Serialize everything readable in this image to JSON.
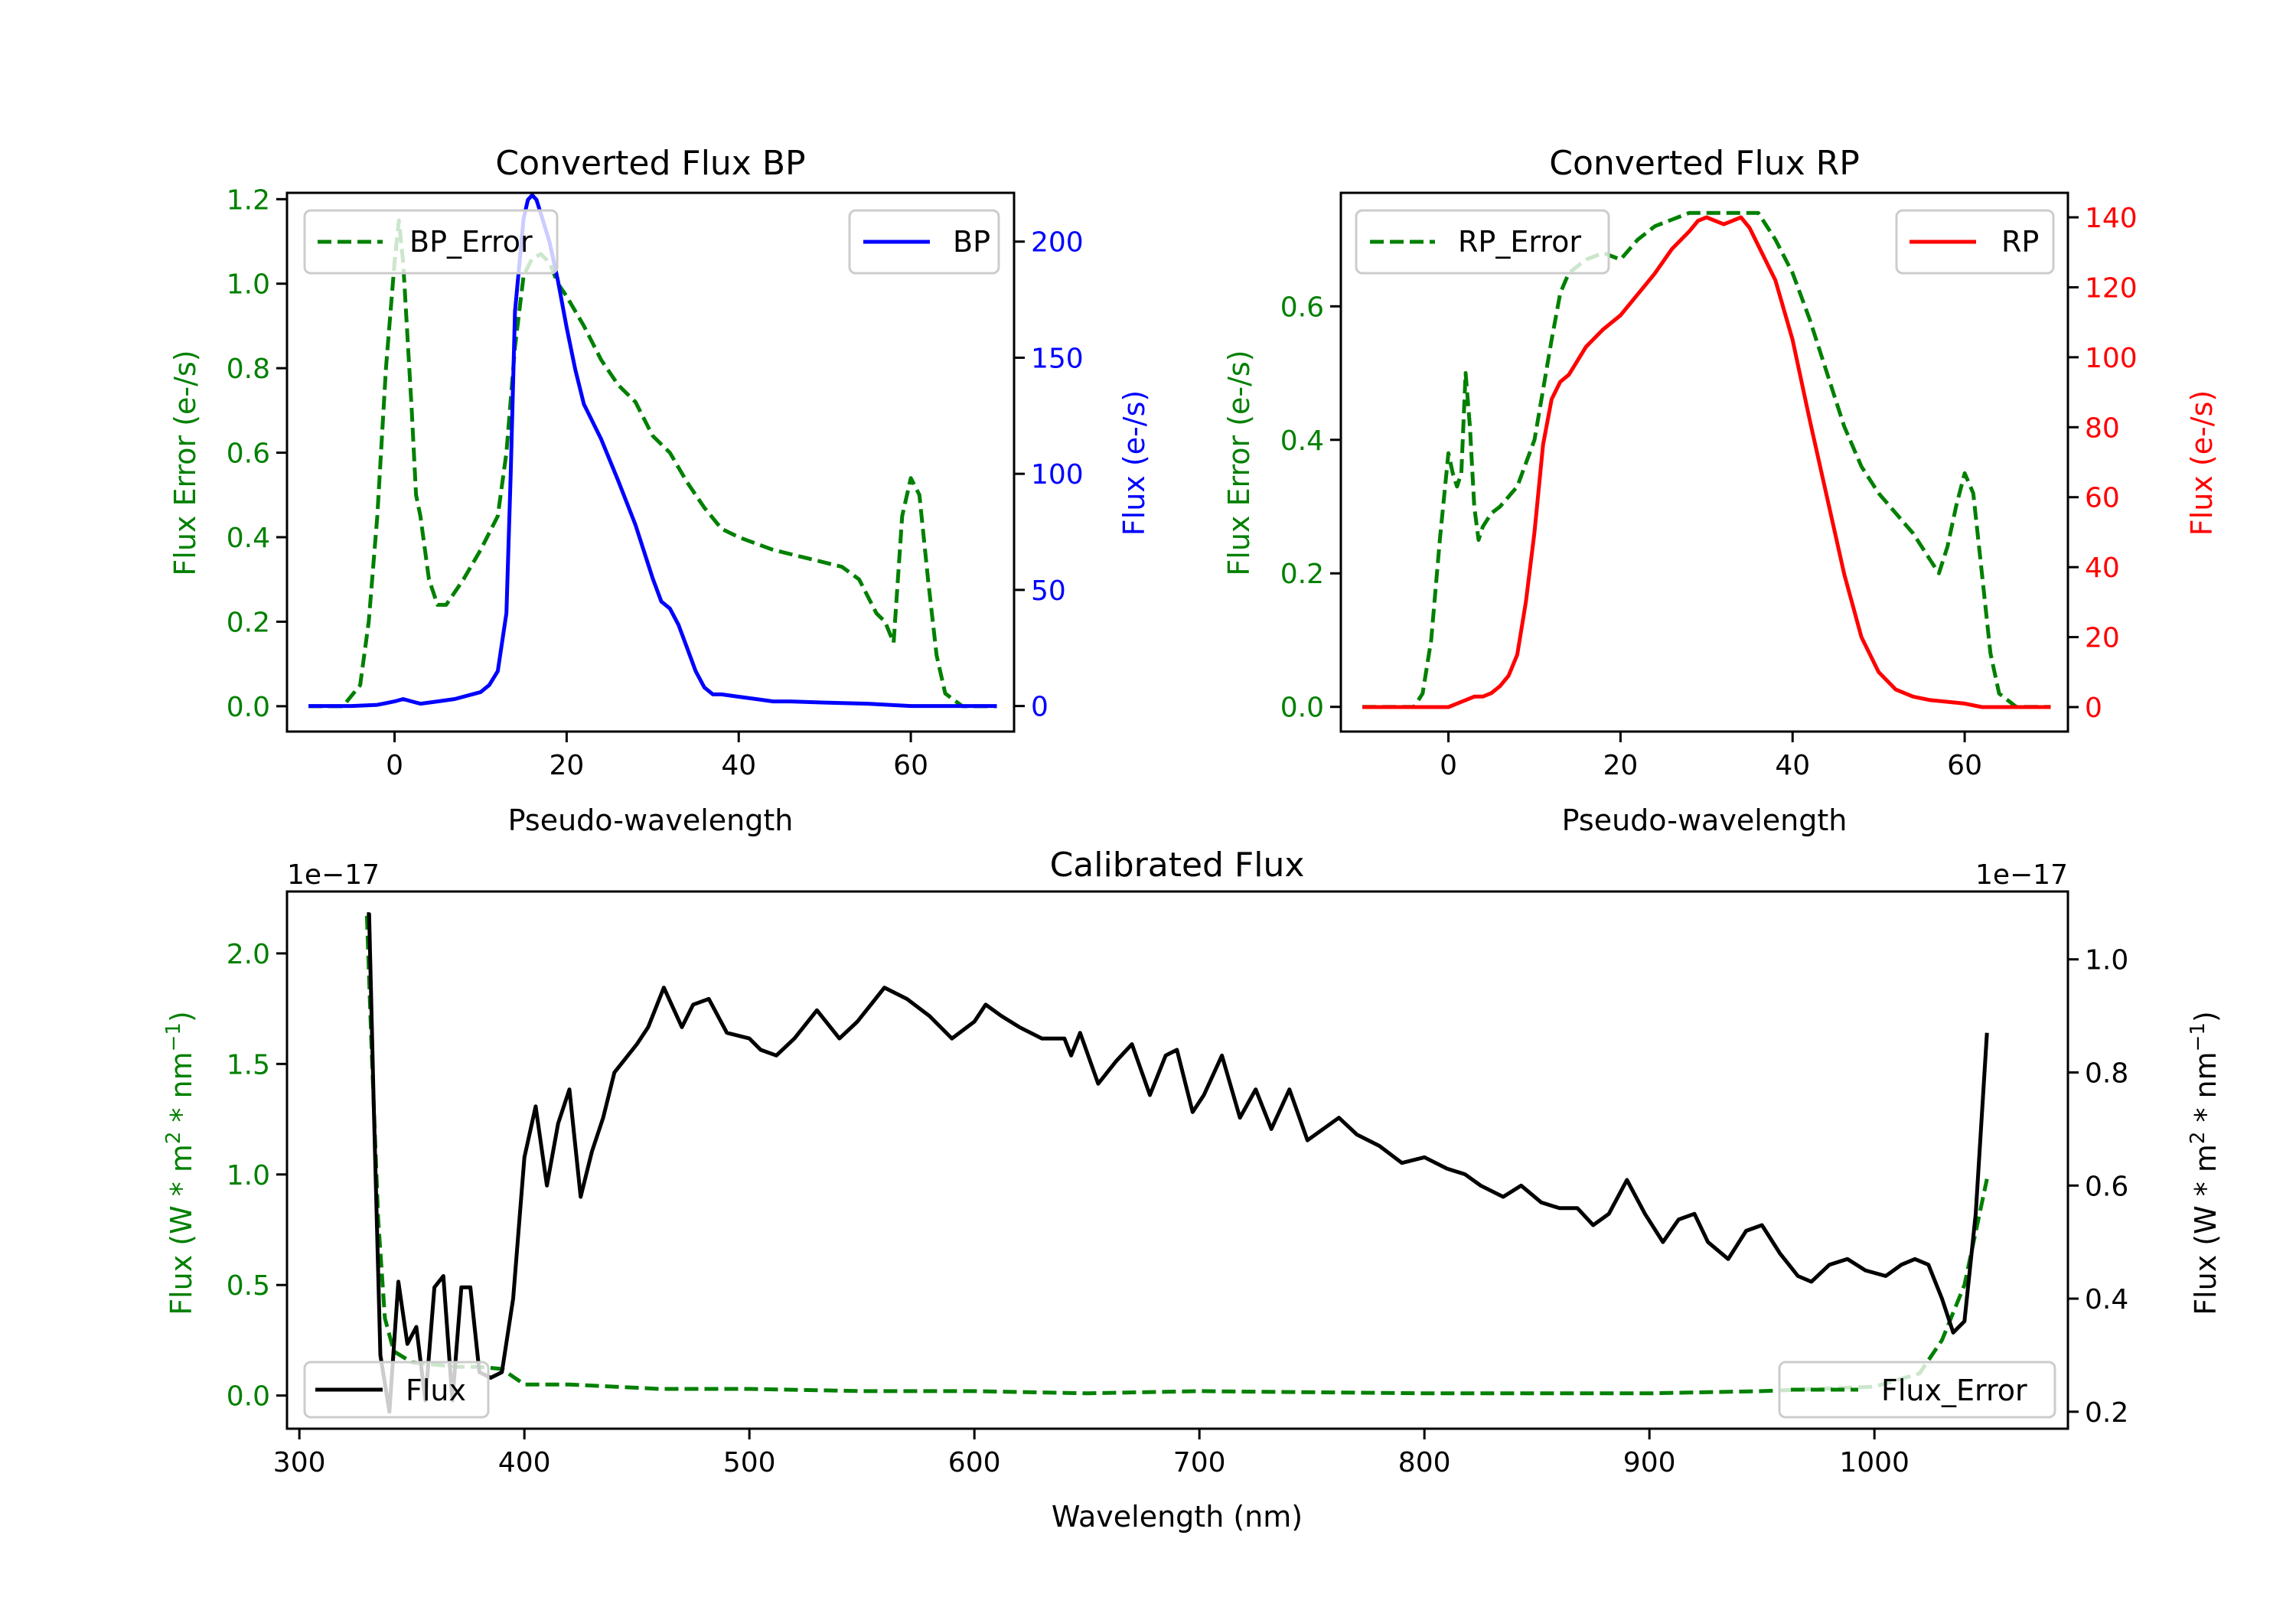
{
  "colors": {
    "error": "#008000",
    "bp": "#0000ff",
    "rp": "#ff0000",
    "flux": "#000000",
    "axis": "#000000",
    "legend_border": "#cccccc"
  },
  "chart_data": [
    {
      "id": "bp",
      "type": "line",
      "title": "Converted Flux BP",
      "xlabel": "Pseudo-wavelength",
      "ylabel_left": "Flux Error (e-/s)",
      "ylabel_right": "Flux (e-/s)",
      "xlim": [
        -12.5,
        72
      ],
      "ylim_left": [
        -0.06,
        1.215
      ],
      "ylim_right": [
        -11,
        221
      ],
      "xticks": [
        0,
        20,
        40,
        60
      ],
      "yticks_left": [
        "0.0",
        "0.2",
        "0.4",
        "0.6",
        "0.8",
        "1.0",
        "1.2"
      ],
      "yticks_right": [
        "0",
        "50",
        "100",
        "150",
        "200"
      ],
      "grid": false,
      "legend_left": {
        "position": "upper left",
        "label": "BP_Error"
      },
      "legend_right": {
        "position": "upper right",
        "label": "BP"
      },
      "series": [
        {
          "name": "BP_Error",
          "axis": "left",
          "style": "dashed",
          "x": [
            -10,
            -6,
            -4,
            -3,
            -2,
            -1,
            0,
            0.5,
            1,
            2,
            2.5,
            3,
            4,
            5,
            6,
            8,
            10,
            12,
            13,
            14,
            15,
            16,
            17,
            18,
            19,
            20,
            22,
            24,
            26,
            28,
            30,
            32,
            34,
            36,
            38,
            40,
            44,
            48,
            52,
            54,
            56,
            57,
            58,
            59,
            60,
            61,
            62,
            63,
            64,
            66,
            70
          ],
          "y": [
            0.0,
            0.0,
            0.05,
            0.2,
            0.45,
            0.8,
            1.05,
            1.15,
            1.05,
            0.7,
            0.5,
            0.45,
            0.3,
            0.24,
            0.24,
            0.3,
            0.37,
            0.45,
            0.6,
            0.85,
            1.02,
            1.06,
            1.07,
            1.05,
            1.0,
            0.97,
            0.9,
            0.82,
            0.76,
            0.72,
            0.64,
            0.6,
            0.53,
            0.47,
            0.42,
            0.4,
            0.37,
            0.35,
            0.33,
            0.3,
            0.22,
            0.2,
            0.15,
            0.45,
            0.54,
            0.5,
            0.3,
            0.12,
            0.03,
            0.0,
            0.0
          ]
        },
        {
          "name": "BP",
          "axis": "right",
          "style": "solid",
          "x": [
            -10,
            -5,
            -2,
            0,
            1,
            2,
            3,
            5,
            7,
            9,
            10,
            11,
            12,
            13,
            13.5,
            14,
            15,
            15.5,
            16,
            16.5,
            17,
            18,
            19,
            20,
            21,
            22,
            24,
            26,
            28,
            30,
            31,
            32,
            33,
            34,
            35,
            36,
            37,
            38,
            40,
            42,
            44,
            46,
            50,
            55,
            60,
            65,
            70
          ],
          "y": [
            0,
            0,
            0.5,
            2,
            3,
            2,
            1,
            2,
            3,
            5,
            6,
            9,
            15,
            40,
            100,
            170,
            210,
            218,
            220,
            218,
            212,
            200,
            183,
            163,
            145,
            130,
            115,
            97,
            78,
            55,
            45,
            42,
            35,
            25,
            15,
            8,
            5,
            5,
            4,
            3,
            2,
            2,
            1.5,
            1,
            0,
            0,
            0
          ]
        }
      ]
    },
    {
      "id": "rp",
      "type": "line",
      "title": "Converted Flux RP",
      "xlabel": "Pseudo-wavelength",
      "ylabel_left": "Flux Error (e-/s)",
      "ylabel_right": "Flux (e-/s)",
      "xlim": [
        -12.5,
        72
      ],
      "ylim_left": [
        -0.037,
        0.77
      ],
      "ylim_right": [
        -7,
        147
      ],
      "xticks": [
        0,
        20,
        40,
        60
      ],
      "yticks_left": [
        "0.0",
        "0.2",
        "0.4",
        "0.6"
      ],
      "yticks_right": [
        "0",
        "20",
        "40",
        "60",
        "80",
        "100",
        "120",
        "140"
      ],
      "grid": false,
      "legend_left": {
        "position": "upper left",
        "label": "RP_Error"
      },
      "legend_right": {
        "position": "upper right",
        "label": "RP"
      },
      "series": [
        {
          "name": "RP_Error",
          "axis": "left",
          "style": "dashed",
          "x": [
            -10,
            -4,
            -3,
            -2,
            -1,
            0,
            0.5,
            1,
            1.5,
            2,
            2.5,
            3,
            3.5,
            4,
            5,
            6,
            8,
            10,
            12,
            13,
            14,
            16,
            18,
            20,
            22,
            24,
            26,
            28,
            30,
            32,
            34,
            36,
            38,
            40,
            42,
            44,
            46,
            48,
            50,
            52,
            54,
            55,
            56,
            57,
            58,
            59,
            60,
            61,
            62,
            63,
            64,
            66,
            70
          ],
          "y": [
            0.0,
            0.0,
            0.02,
            0.1,
            0.25,
            0.38,
            0.35,
            0.33,
            0.35,
            0.5,
            0.42,
            0.3,
            0.25,
            0.27,
            0.29,
            0.3,
            0.33,
            0.4,
            0.55,
            0.62,
            0.65,
            0.67,
            0.68,
            0.67,
            0.7,
            0.72,
            0.73,
            0.74,
            0.74,
            0.74,
            0.74,
            0.74,
            0.7,
            0.65,
            0.58,
            0.5,
            0.42,
            0.36,
            0.32,
            0.29,
            0.26,
            0.24,
            0.22,
            0.2,
            0.24,
            0.3,
            0.35,
            0.32,
            0.2,
            0.08,
            0.02,
            0.0,
            0.0
          ]
        },
        {
          "name": "RP",
          "axis": "right",
          "style": "solid",
          "x": [
            -10,
            -4,
            0,
            1,
            2,
            3,
            4,
            5,
            6,
            7,
            8,
            9,
            10,
            11,
            12,
            13,
            14,
            16,
            18,
            20,
            22,
            24,
            26,
            28,
            29,
            30,
            31,
            32,
            33,
            34,
            35,
            36,
            38,
            40,
            42,
            44,
            46,
            48,
            50,
            52,
            54,
            56,
            58,
            60,
            62,
            66,
            70
          ],
          "y": [
            0,
            0,
            0,
            1,
            2,
            3,
            3,
            4,
            6,
            9,
            15,
            30,
            50,
            75,
            88,
            93,
            95,
            103,
            108,
            112,
            118,
            124,
            131,
            136,
            139,
            140,
            139,
            138,
            139,
            140,
            137,
            132,
            122,
            105,
            82,
            60,
            38,
            20,
            10,
            5,
            3,
            2,
            1.5,
            1,
            0,
            0,
            0
          ]
        }
      ]
    },
    {
      "id": "calibrated",
      "type": "line",
      "title": "Calibrated Flux",
      "xlabel": "Wavelength (nm)",
      "ylabel_left": "Flux (W * m^2 * nm^-1)",
      "ylabel_right": "Flux (W * m^2 * nm^-1)",
      "offset_left": "1e−17",
      "offset_right": "1e−17",
      "xlim": [
        294.5,
        1086
      ],
      "ylim_left": [
        -0.15,
        2.28
      ],
      "ylim_right": [
        0.17,
        1.12
      ],
      "xticks": [
        300,
        400,
        500,
        600,
        700,
        800,
        900,
        1000
      ],
      "yticks_left": [
        "0.0",
        "0.5",
        "1.0",
        "1.5",
        "2.0"
      ],
      "yticks_right": [
        "0.2",
        "0.4",
        "0.6",
        "0.8",
        "1.0"
      ],
      "grid": false,
      "legend_left": {
        "position": "lower left",
        "label": "Flux"
      },
      "legend_right": {
        "position": "lower right",
        "label": "Flux_Error"
      },
      "series": [
        {
          "name": "Flux_Error",
          "axis": "left",
          "style": "dashed",
          "x": [
            330,
            332,
            335,
            338,
            342,
            350,
            360,
            370,
            380,
            390,
            400,
            420,
            440,
            460,
            500,
            550,
            600,
            650,
            700,
            800,
            900,
            950,
            1000,
            1020,
            1030,
            1040,
            1050
          ],
          "y": [
            2.17,
            1.6,
            0.8,
            0.35,
            0.2,
            0.15,
            0.14,
            0.13,
            0.13,
            0.12,
            0.05,
            0.05,
            0.04,
            0.03,
            0.03,
            0.02,
            0.02,
            0.01,
            0.02,
            0.01,
            0.01,
            0.02,
            0.04,
            0.1,
            0.25,
            0.5,
            0.98
          ]
        },
        {
          "name": "Flux",
          "axis": "right",
          "style": "solid",
          "x": [
            330,
            331,
            333,
            336,
            340,
            344,
            348,
            352,
            356,
            360,
            364,
            368,
            372,
            376,
            380,
            385,
            390,
            395,
            400,
            405,
            410,
            415,
            420,
            425,
            430,
            435,
            440,
            450,
            455,
            462,
            470,
            475,
            482,
            490,
            500,
            505,
            512,
            520,
            530,
            540,
            548,
            560,
            570,
            580,
            590,
            600,
            605,
            612,
            620,
            630,
            640,
            643,
            647,
            655,
            663,
            670,
            678,
            685,
            690,
            697,
            702,
            710,
            718,
            725,
            732,
            740,
            748,
            755,
            762,
            770,
            780,
            790,
            800,
            810,
            818,
            825,
            835,
            843,
            852,
            860,
            868,
            875,
            882,
            890,
            898,
            906,
            913,
            920,
            926,
            935,
            943,
            950,
            958,
            966,
            972,
            980,
            988,
            996,
            1005,
            1012,
            1018,
            1024,
            1030,
            1035,
            1040,
            1045,
            1050
          ],
          "y": [
            1.08,
            1.08,
            0.75,
            0.3,
            0.2,
            0.43,
            0.32,
            0.35,
            0.22,
            0.42,
            0.44,
            0.22,
            0.42,
            0.42,
            0.27,
            0.26,
            0.27,
            0.4,
            0.65,
            0.74,
            0.6,
            0.71,
            0.77,
            0.58,
            0.66,
            0.72,
            0.8,
            0.85,
            0.88,
            0.95,
            0.88,
            0.92,
            0.93,
            0.87,
            0.86,
            0.84,
            0.83,
            0.86,
            0.91,
            0.86,
            0.89,
            0.95,
            0.93,
            0.9,
            0.86,
            0.89,
            0.92,
            0.9,
            0.88,
            0.86,
            0.86,
            0.83,
            0.87,
            0.78,
            0.82,
            0.85,
            0.76,
            0.83,
            0.84,
            0.73,
            0.76,
            0.83,
            0.72,
            0.77,
            0.7,
            0.77,
            0.68,
            0.7,
            0.72,
            0.69,
            0.67,
            0.64,
            0.65,
            0.63,
            0.62,
            0.6,
            0.58,
            0.6,
            0.57,
            0.56,
            0.56,
            0.53,
            0.55,
            0.61,
            0.55,
            0.5,
            0.54,
            0.55,
            0.5,
            0.47,
            0.52,
            0.53,
            0.48,
            0.44,
            0.43,
            0.46,
            0.47,
            0.45,
            0.44,
            0.46,
            0.47,
            0.46,
            0.4,
            0.34,
            0.36,
            0.55,
            0.87
          ]
        }
      ]
    }
  ]
}
